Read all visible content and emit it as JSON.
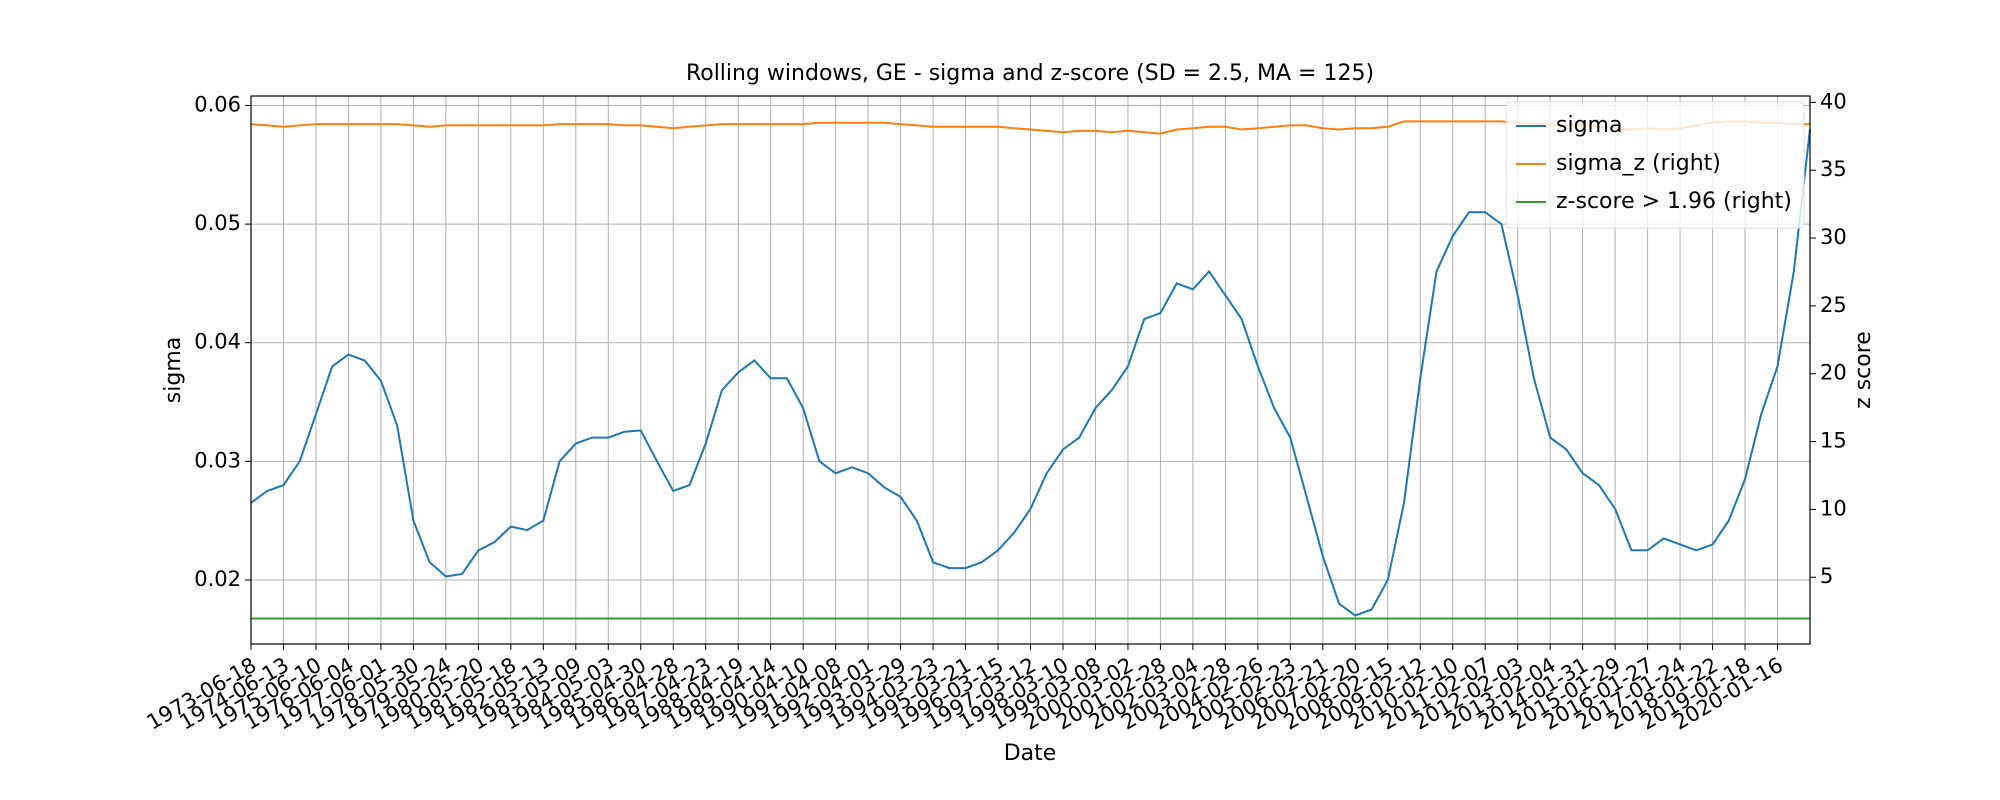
{
  "chart_data": {
    "type": "line",
    "title": "Rolling windows, GE - sigma and z-score (SD = 2.5, MA = 125)",
    "x_label": "Date",
    "y_label": "sigma",
    "y2_label": "z score",
    "categories": [
      "1973-06-18",
      null,
      "1974-06-13",
      null,
      "1975-06-10",
      null,
      "1976-06-04",
      null,
      "1977-06-01",
      null,
      "1978-05-30",
      null,
      "1979-05-24",
      null,
      "1980-05-20",
      null,
      "1981-05-18",
      null,
      "1982-05-13",
      null,
      "1983-05-09",
      null,
      "1984-05-03",
      null,
      "1985-04-30",
      null,
      "1986-04-28",
      null,
      "1987-04-23",
      null,
      "1988-04-19",
      null,
      "1989-04-14",
      null,
      "1990-04-10",
      null,
      "1991-04-08",
      null,
      "1992-04-01",
      null,
      "1993-03-29",
      null,
      "1994-03-23",
      null,
      "1995-03-21",
      null,
      "1996-03-15",
      null,
      "1997-03-12",
      null,
      "1998-03-10",
      null,
      "1999-03-08",
      null,
      "2000-03-02",
      null,
      "2001-02-28",
      null,
      "2002-03-04",
      null,
      "2003-02-28",
      null,
      "2004-02-26",
      null,
      "2005-02-23",
      null,
      "2006-02-21",
      null,
      "2007-02-20",
      null,
      "2008-02-15",
      null,
      "2009-02-12",
      null,
      "2010-02-10",
      null,
      "2011-02-07",
      null,
      "2012-02-03",
      null,
      "2013-02-04",
      null,
      "2014-01-31",
      null,
      "2015-01-29",
      null,
      "2016-01-27",
      null,
      "2017-01-24",
      null,
      "2018-01-22",
      null,
      "2019-01-18",
      null,
      "2020-01-16",
      null,
      null
    ],
    "series": [
      {
        "name": "sigma",
        "color": "#1f77b4",
        "axis": "y",
        "values": [
          0.0265,
          0.0275,
          0.028,
          0.03,
          0.034,
          0.038,
          0.039,
          0.0385,
          0.0368,
          0.033,
          0.025,
          0.0215,
          0.0203,
          0.0205,
          0.0225,
          0.0232,
          0.0245,
          0.0242,
          0.025,
          0.03,
          0.0315,
          0.032,
          0.032,
          0.0325,
          0.0326,
          0.03,
          0.0275,
          0.028,
          0.0315,
          0.036,
          0.0375,
          0.0385,
          0.037,
          0.037,
          0.0345,
          0.03,
          0.029,
          0.0295,
          0.029,
          0.0278,
          0.027,
          0.025,
          0.0215,
          0.021,
          0.021,
          0.0215,
          0.0225,
          0.024,
          0.026,
          0.029,
          0.031,
          0.032,
          0.0345,
          0.036,
          0.038,
          0.042,
          0.0425,
          0.045,
          0.0445,
          0.046,
          0.044,
          0.042,
          0.038,
          0.0345,
          0.032,
          0.027,
          0.022,
          0.018,
          0.017,
          0.0175,
          0.02,
          0.0265,
          0.037,
          0.046,
          0.049,
          0.051,
          0.051,
          0.05,
          0.044,
          0.037,
          0.032,
          0.031,
          0.029,
          0.028,
          0.026,
          0.0225,
          0.0225,
          0.0235,
          0.023,
          0.0225,
          0.023,
          0.025,
          0.0285,
          0.034,
          0.038,
          0.046,
          0.058
        ]
      },
      {
        "name": "sigma_z (right)",
        "color": "#ff7f0e",
        "axis": "y2",
        "values": [
          38.4,
          38.3,
          38.2,
          38.3,
          38.4,
          38.4,
          38.4,
          38.4,
          38.4,
          38.4,
          38.3,
          38.2,
          38.3,
          38.3,
          38.3,
          38.3,
          38.3,
          38.3,
          38.3,
          38.4,
          38.4,
          38.4,
          38.4,
          38.3,
          38.3,
          38.2,
          38.1,
          38.2,
          38.3,
          38.4,
          38.4,
          38.4,
          38.4,
          38.4,
          38.4,
          38.5,
          38.5,
          38.5,
          38.5,
          38.5,
          38.4,
          38.3,
          38.2,
          38.2,
          38.2,
          38.2,
          38.2,
          38.1,
          38.0,
          37.9,
          37.8,
          37.9,
          37.9,
          37.8,
          37.9,
          37.8,
          37.7,
          38.0,
          38.1,
          38.2,
          38.2,
          38.0,
          38.1,
          38.2,
          38.3,
          38.3,
          38.1,
          38.0,
          38.1,
          38.1,
          38.2,
          38.6,
          38.6,
          38.6,
          38.6,
          38.6,
          38.6,
          38.6,
          38.5,
          38.4,
          38.4,
          38.3,
          38.3,
          38.2,
          38.1,
          38.0,
          38.1,
          38.0,
          38.1,
          38.3,
          38.5,
          38.6,
          38.6,
          38.5,
          38.5,
          38.4,
          38.4
        ]
      },
      {
        "name": "z-score > 1.96 (right)",
        "color": "#2ca02c",
        "axis": "y2",
        "values": [
          1.96,
          1.96,
          1.96,
          1.96,
          1.96,
          1.96,
          1.96,
          1.96,
          1.96,
          1.96,
          1.96,
          1.96,
          1.96,
          1.96,
          1.96,
          1.96,
          1.96,
          1.96,
          1.96,
          1.96,
          1.96,
          1.96,
          1.96,
          1.96,
          1.96,
          1.96,
          1.96,
          1.96,
          1.96,
          1.96,
          1.96,
          1.96,
          1.96,
          1.96,
          1.96,
          1.96,
          1.96,
          1.96,
          1.96,
          1.96,
          1.96,
          1.96,
          1.96,
          1.96,
          1.96,
          1.96,
          1.96,
          1.96,
          1.96,
          1.96,
          1.96,
          1.96,
          1.96,
          1.96,
          1.96,
          1.96,
          1.96,
          1.96,
          1.96,
          1.96,
          1.96,
          1.96,
          1.96,
          1.96,
          1.96,
          1.96,
          1.96,
          1.96,
          1.96,
          1.96,
          1.96,
          1.96,
          1.96,
          1.96,
          1.96,
          1.96,
          1.96,
          1.96,
          1.96,
          1.96,
          1.96,
          1.96,
          1.96,
          1.96,
          1.96,
          1.96,
          1.96,
          1.96,
          1.96,
          1.96,
          1.96,
          1.96,
          1.96,
          1.96,
          1.96,
          1.96,
          1.96
        ]
      }
    ],
    "ylim": [
      0.0146,
      0.0608
    ],
    "yticks": [
      0.02,
      0.03,
      0.04,
      0.05,
      0.06
    ],
    "y2lim": [
      0.08,
      40.47
    ],
    "y2ticks": [
      5,
      10,
      15,
      20,
      25,
      30,
      35,
      40
    ],
    "grid": true,
    "legend": "upper right"
  }
}
